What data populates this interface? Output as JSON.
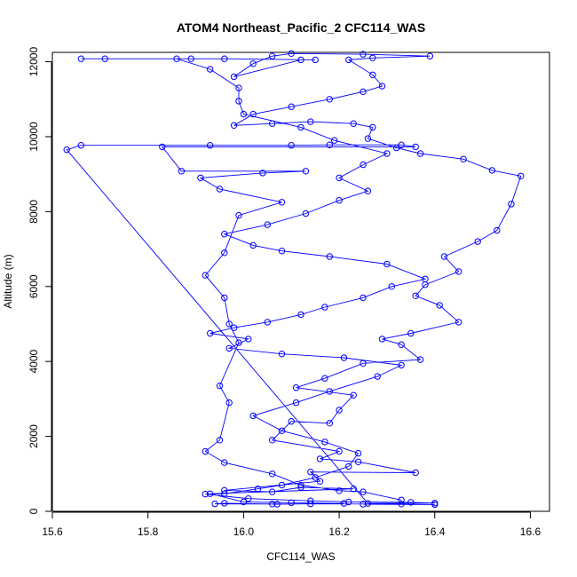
{
  "chart_data": {
    "type": "line",
    "title": "ATOM4 Northeast_Pacific_2 CFC114_WAS",
    "xlabel": "CFC114_WAS",
    "ylabel": "Altitude (m)",
    "xlim": [
      15.6,
      16.64
    ],
    "ylim": [
      0,
      12250
    ],
    "x_ticks": [
      15.6,
      15.8,
      16.0,
      16.2,
      16.4,
      16.6
    ],
    "x_tick_labels": [
      "15.6",
      "15.8",
      "16.0",
      "16.2",
      "16.4",
      "16.6"
    ],
    "y_ticks": [
      0,
      2000,
      4000,
      6000,
      8000,
      10000,
      12000
    ],
    "y_tick_labels": [
      "0",
      "2000",
      "4000",
      "6000",
      "8000",
      "10000",
      "12000"
    ],
    "grid": false,
    "legend": "none",
    "series": [
      {
        "color": "#0000ff",
        "marker": "open-circle",
        "points": [
          [
            16.25,
            190
          ],
          [
            16.4,
            180
          ],
          [
            16.33,
            195
          ],
          [
            16.14,
            200
          ],
          [
            16.06,
            195
          ],
          [
            15.94,
            200
          ],
          [
            15.96,
            215
          ],
          [
            16.07,
            190
          ],
          [
            16.21,
            210
          ],
          [
            16.1,
            230
          ],
          [
            16.0,
            250
          ],
          [
            15.93,
            470
          ],
          [
            16.23,
            600
          ],
          [
            16.12,
            640
          ],
          [
            16.06,
            520
          ],
          [
            15.96,
            560
          ],
          [
            16.16,
            800
          ],
          [
            16.14,
            1050
          ],
          [
            16.36,
            1030
          ],
          [
            16.24,
            1320
          ],
          [
            16.16,
            1400
          ],
          [
            16.2,
            1600
          ],
          [
            16.06,
            1900
          ],
          [
            16.1,
            2400
          ],
          [
            16.18,
            2350
          ],
          [
            16.2,
            2700
          ],
          [
            16.23,
            3100
          ],
          [
            16.11,
            3300
          ],
          [
            16.17,
            3550
          ],
          [
            16.25,
            3950
          ],
          [
            16.37,
            4050
          ],
          [
            16.33,
            4450
          ],
          [
            16.29,
            4600
          ],
          [
            16.35,
            4750
          ],
          [
            16.45,
            5050
          ],
          [
            16.41,
            5500
          ],
          [
            16.36,
            5750
          ],
          [
            16.38,
            6050
          ],
          [
            16.45,
            6400
          ],
          [
            16.42,
            6800
          ],
          [
            16.49,
            7200
          ],
          [
            16.53,
            7500
          ],
          [
            16.56,
            8200
          ],
          [
            16.58,
            8950
          ],
          [
            16.52,
            9100
          ],
          [
            16.46,
            9400
          ],
          [
            16.37,
            9550
          ],
          [
            16.32,
            9700
          ],
          [
            16.26,
            9950
          ],
          [
            16.27,
            10250
          ],
          [
            16.23,
            10350
          ],
          [
            16.14,
            10400
          ],
          [
            16.06,
            10350
          ],
          [
            15.98,
            10300
          ],
          [
            16.02,
            10600
          ],
          [
            16.1,
            10800
          ],
          [
            16.18,
            11000
          ],
          [
            16.25,
            11200
          ],
          [
            16.29,
            11350
          ],
          [
            16.27,
            11650
          ],
          [
            16.22,
            12050
          ],
          [
            16.27,
            12100
          ],
          [
            16.39,
            12150
          ],
          [
            16.25,
            12200
          ],
          [
            16.1,
            12220
          ],
          [
            16.06,
            12150
          ],
          [
            16.02,
            11950
          ],
          [
            15.98,
            11600
          ],
          [
            16.12,
            12050
          ],
          [
            16.15,
            12050
          ],
          [
            15.96,
            12080
          ],
          [
            15.89,
            12080
          ],
          [
            15.71,
            12080
          ],
          [
            15.66,
            12080
          ],
          [
            15.86,
            12080
          ],
          [
            15.93,
            11800
          ],
          [
            15.99,
            11300
          ],
          [
            15.99,
            10950
          ],
          [
            16.0,
            10600
          ],
          [
            16.12,
            10250
          ],
          [
            16.19,
            9900
          ],
          [
            16.3,
            9550
          ],
          [
            16.25,
            9250
          ],
          [
            16.2,
            8900
          ],
          [
            16.26,
            8550
          ],
          [
            16.2,
            8300
          ],
          [
            16.13,
            7950
          ],
          [
            16.05,
            7650
          ],
          [
            15.96,
            7400
          ],
          [
            16.02,
            7100
          ],
          [
            16.08,
            6950
          ],
          [
            16.18,
            6800
          ],
          [
            16.3,
            6600
          ],
          [
            16.38,
            6200
          ],
          [
            16.31,
            6000
          ],
          [
            16.25,
            5700
          ],
          [
            16.17,
            5450
          ],
          [
            16.12,
            5250
          ],
          [
            16.05,
            5050
          ],
          [
            15.98,
            4900
          ],
          [
            15.93,
            4750
          ],
          [
            16.01,
            4600
          ],
          [
            15.97,
            4350
          ],
          [
            16.08,
            4200
          ],
          [
            16.21,
            4100
          ],
          [
            16.33,
            3900
          ],
          [
            16.28,
            3600
          ],
          [
            16.18,
            3200
          ],
          [
            16.11,
            2900
          ],
          [
            16.02,
            2550
          ],
          [
            16.08,
            2150
          ],
          [
            16.17,
            1850
          ],
          [
            16.24,
            1550
          ],
          [
            16.22,
            1200
          ],
          [
            16.15,
            900
          ],
          [
            16.08,
            700
          ],
          [
            16.03,
            600
          ],
          [
            15.96,
            470
          ],
          [
            15.92,
            460
          ],
          [
            16.01,
            340
          ],
          [
            16.14,
            280
          ],
          [
            16.22,
            250
          ],
          [
            16.35,
            240
          ],
          [
            16.4,
            220
          ],
          [
            16.26,
            210
          ],
          [
            15.63,
            9650
          ],
          [
            15.66,
            9770
          ],
          [
            15.93,
            9770
          ],
          [
            16.1,
            9770
          ],
          [
            16.18,
            9780
          ],
          [
            16.33,
            9780
          ],
          [
            16.36,
            9730
          ],
          [
            15.83,
            9730
          ],
          [
            15.87,
            9080
          ],
          [
            16.13,
            9080
          ],
          [
            16.04,
            9030
          ],
          [
            15.91,
            8900
          ],
          [
            15.95,
            8600
          ],
          [
            16.08,
            8250
          ],
          [
            15.99,
            7900
          ],
          [
            15.96,
            6900
          ],
          [
            15.92,
            6300
          ],
          [
            15.96,
            5700
          ],
          [
            15.97,
            5000
          ],
          [
            15.99,
            4500
          ],
          [
            15.95,
            3350
          ],
          [
            15.97,
            2900
          ],
          [
            15.95,
            1900
          ],
          [
            15.92,
            1600
          ],
          [
            15.96,
            1300
          ],
          [
            16.06,
            1000
          ],
          [
            16.12,
            700
          ],
          [
            16.2,
            550
          ],
          [
            16.25,
            520
          ],
          [
            16.33,
            300
          ]
        ]
      }
    ]
  }
}
